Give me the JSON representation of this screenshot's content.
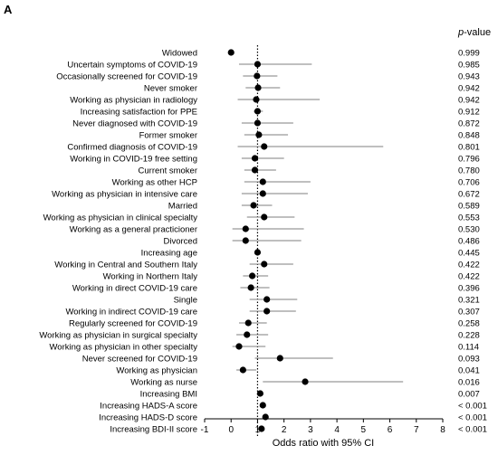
{
  "panel_label": "A",
  "pvalue_header_italic": "p",
  "pvalue_header_rest": "-value",
  "chart_data": {
    "type": "forest",
    "xlabel": "Odds ratio with 95% CI",
    "xlim": [
      -1,
      8
    ],
    "xticks": [
      -1,
      0,
      1,
      2,
      3,
      4,
      5,
      6,
      7,
      8
    ],
    "reference_line": 1,
    "rows": [
      {
        "label": "Widowed",
        "or": 0.0,
        "ci": null,
        "p": "0.999"
      },
      {
        "label": "Uncertain symptoms of COVID-19",
        "or": 1.0,
        "ci": [
          0.3,
          3.05
        ],
        "p": "0.985"
      },
      {
        "label": "Occasionally screened for COVID-19",
        "or": 0.98,
        "ci": [
          0.45,
          1.75
        ],
        "p": "0.943"
      },
      {
        "label": "Never smoker",
        "or": 1.02,
        "ci": [
          0.55,
          1.85
        ],
        "p": "0.942"
      },
      {
        "label": "Working as physician in radiology",
        "or": 0.95,
        "ci": [
          0.25,
          3.35
        ],
        "p": "0.942"
      },
      {
        "label": "Increasing satisfaction for PPE",
        "or": 1.0,
        "ci": [
          0.85,
          1.2
        ],
        "p": "0.912"
      },
      {
        "label": "Never diagnosed with COVID-19",
        "or": 1.0,
        "ci": [
          0.4,
          2.35
        ],
        "p": "0.872"
      },
      {
        "label": "Former smoker",
        "or": 1.05,
        "ci": [
          0.5,
          2.15
        ],
        "p": "0.848"
      },
      {
        "label": "Confirmed diagnosis of COVID-19",
        "or": 1.25,
        "ci": [
          0.25,
          5.75
        ],
        "p": "0.801"
      },
      {
        "label": "Working in COVID-19 free setting",
        "or": 0.9,
        "ci": [
          0.4,
          2.0
        ],
        "p": "0.796"
      },
      {
        "label": "Current smoker",
        "or": 0.9,
        "ci": [
          0.5,
          1.7
        ],
        "p": "0.780"
      },
      {
        "label": "Working as other HCP",
        "or": 1.2,
        "ci": [
          0.5,
          3.0
        ],
        "p": "0.706"
      },
      {
        "label": "Working as physician in intensive care",
        "or": 1.2,
        "ci": [
          0.4,
          2.9
        ],
        "p": "0.672"
      },
      {
        "label": "Married",
        "or": 0.85,
        "ci": [
          0.4,
          1.55
        ],
        "p": "0.589"
      },
      {
        "label": "Working as physician in clinical specialty",
        "or": 1.25,
        "ci": [
          0.6,
          2.4
        ],
        "p": "0.553"
      },
      {
        "label": "Working as a general practicioner",
        "or": 0.55,
        "ci": [
          0.05,
          2.75
        ],
        "p": "0.530"
      },
      {
        "label": "Divorced",
        "or": 0.55,
        "ci": [
          0.05,
          2.65
        ],
        "p": "0.486"
      },
      {
        "label": "Increasing age",
        "or": 1.0,
        "ci": [
          0.95,
          1.05
        ],
        "p": "0.445"
      },
      {
        "label": "Working in Central and Southern Italy",
        "or": 1.25,
        "ci": [
          0.7,
          2.35
        ],
        "p": "0.422"
      },
      {
        "label": "Working in Northern Italy",
        "or": 0.8,
        "ci": [
          0.45,
          1.4
        ],
        "p": "0.422"
      },
      {
        "label": "Working in direct COVID-19 care",
        "or": 0.75,
        "ci": [
          0.35,
          1.45
        ],
        "p": "0.396"
      },
      {
        "label": "Single",
        "or": 1.35,
        "ci": [
          0.7,
          2.5
        ],
        "p": "0.321"
      },
      {
        "label": "Working in indirect COVID-19 care",
        "or": 1.35,
        "ci": [
          0.7,
          2.45
        ],
        "p": "0.307"
      },
      {
        "label": "Regularly screened for COVID-19",
        "or": 0.65,
        "ci": [
          0.3,
          1.35
        ],
        "p": "0.258"
      },
      {
        "label": "Working as physician in surgical specialty",
        "or": 0.6,
        "ci": [
          0.2,
          1.4
        ],
        "p": "0.228"
      },
      {
        "label": "Working as physician in other specialty",
        "or": 0.3,
        "ci": [
          0.05,
          1.3
        ],
        "p": "0.114"
      },
      {
        "label": "Never screened for COVID-19",
        "or": 1.85,
        "ci": [
          0.9,
          3.85
        ],
        "p": "0.093"
      },
      {
        "label": "Working as physician",
        "or": 0.45,
        "ci": [
          0.2,
          0.95
        ],
        "p": "0.041"
      },
      {
        "label": "Working as nurse",
        "or": 2.8,
        "ci": [
          1.2,
          6.5
        ],
        "p": "0.016"
      },
      {
        "label": "Increasing BMI",
        "or": 1.1,
        "ci": [
          1.03,
          1.2
        ],
        "p": "0.007"
      },
      {
        "label": "Increasing HADS-A score",
        "or": 1.2,
        "ci": [
          1.13,
          1.28
        ],
        "p": "< 0.001"
      },
      {
        "label": "Increasing HADS-D score",
        "or": 1.3,
        "ci": [
          1.2,
          1.42
        ],
        "p": "< 0.001"
      },
      {
        "label": "Increasing BDI-II score",
        "or": 1.15,
        "ci": [
          1.1,
          1.22
        ],
        "p": "< 0.001"
      }
    ]
  }
}
